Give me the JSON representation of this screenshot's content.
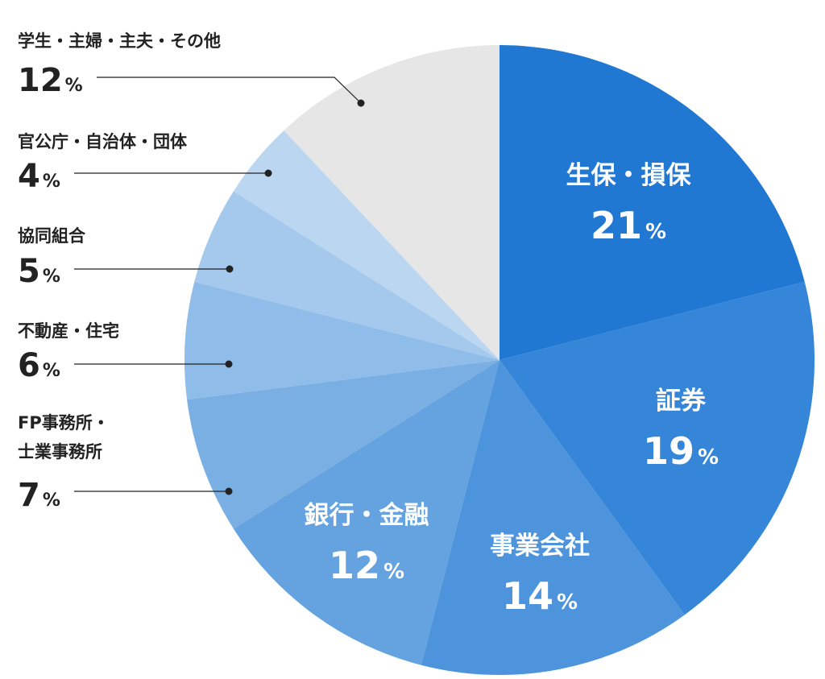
{
  "chart_data": {
    "type": "pie",
    "start_angle_deg": 0,
    "direction": "clockwise",
    "slices": [
      {
        "label": "生保・損保",
        "value": 21,
        "unit": "%",
        "color": "#2078d2",
        "label_position": "inside"
      },
      {
        "label": "証券",
        "value": 19,
        "unit": "%",
        "color": "#3586d8",
        "label_position": "inside"
      },
      {
        "label": "事業会社",
        "value": 14,
        "unit": "%",
        "color": "#4d94dc",
        "label_position": "inside"
      },
      {
        "label": "銀行・金融",
        "value": 12,
        "unit": "%",
        "color": "#64a2e0",
        "label_position": "inside"
      },
      {
        "label": "FP事務所・士業事務所",
        "label_lines": [
          "FP事務所・",
          "士業事務所"
        ],
        "value": 7,
        "unit": "%",
        "color": "#7aafe3",
        "label_position": "outside-left"
      },
      {
        "label": "不動産・住宅",
        "value": 6,
        "unit": "%",
        "color": "#8fbce8",
        "label_position": "outside-left"
      },
      {
        "label": "協同組合",
        "value": 5,
        "unit": "%",
        "color": "#a5c9ec",
        "label_position": "outside-left"
      },
      {
        "label": "官公庁・自治体・団体",
        "value": 4,
        "unit": "%",
        "color": "#bad6f0",
        "label_position": "outside-left"
      },
      {
        "label": "学生・主婦・主夫・その他",
        "value": 12,
        "unit": "%",
        "color": "#e6e6e6",
        "label_position": "outside-left"
      }
    ]
  }
}
